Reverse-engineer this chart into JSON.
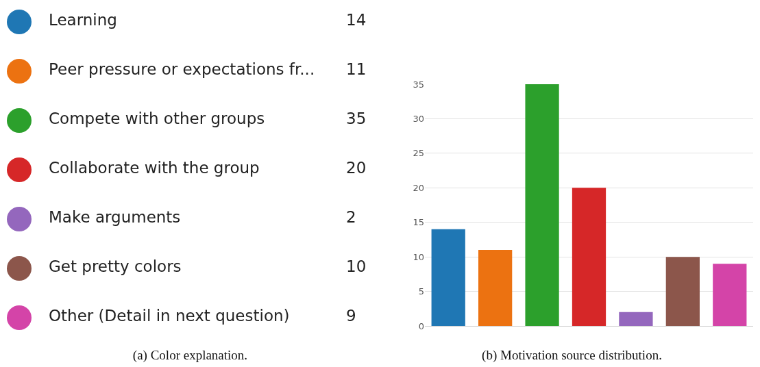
{
  "chart_data": [
    {
      "type": "other",
      "categories": [
        "Learning",
        "Peer pressure or expectations fr...",
        "Compete with other groups",
        "Collaborate with the group",
        "Make arguments",
        "Get pretty colors",
        "Other (Detail in next question)"
      ],
      "values": [
        14,
        11,
        35,
        20,
        2,
        10,
        9
      ],
      "colors": [
        "#1f77b4",
        "#ec7211",
        "#2ca02c",
        "#d62728",
        "#9467bd",
        "#8c564b",
        "#d444a8"
      ],
      "data_labels": true,
      "annotations": [
        "(a) Color explanation."
      ]
    },
    {
      "type": "bar",
      "categories": [
        null,
        null,
        null,
        null,
        null,
        null,
        null
      ],
      "values": [
        14,
        11,
        35,
        20,
        2,
        10,
        9
      ],
      "colors": [
        "#1f77b4",
        "#ec7211",
        "#2ca02c",
        "#d62728",
        "#9467bd",
        "#8c564b",
        "#d444a8"
      ],
      "ylim": [
        0,
        35
      ],
      "yticks": [
        0,
        5,
        10,
        15,
        20,
        25,
        30,
        35
      ],
      "grid": "y",
      "annotations": [
        "(b) Motivation source distribution."
      ]
    }
  ]
}
